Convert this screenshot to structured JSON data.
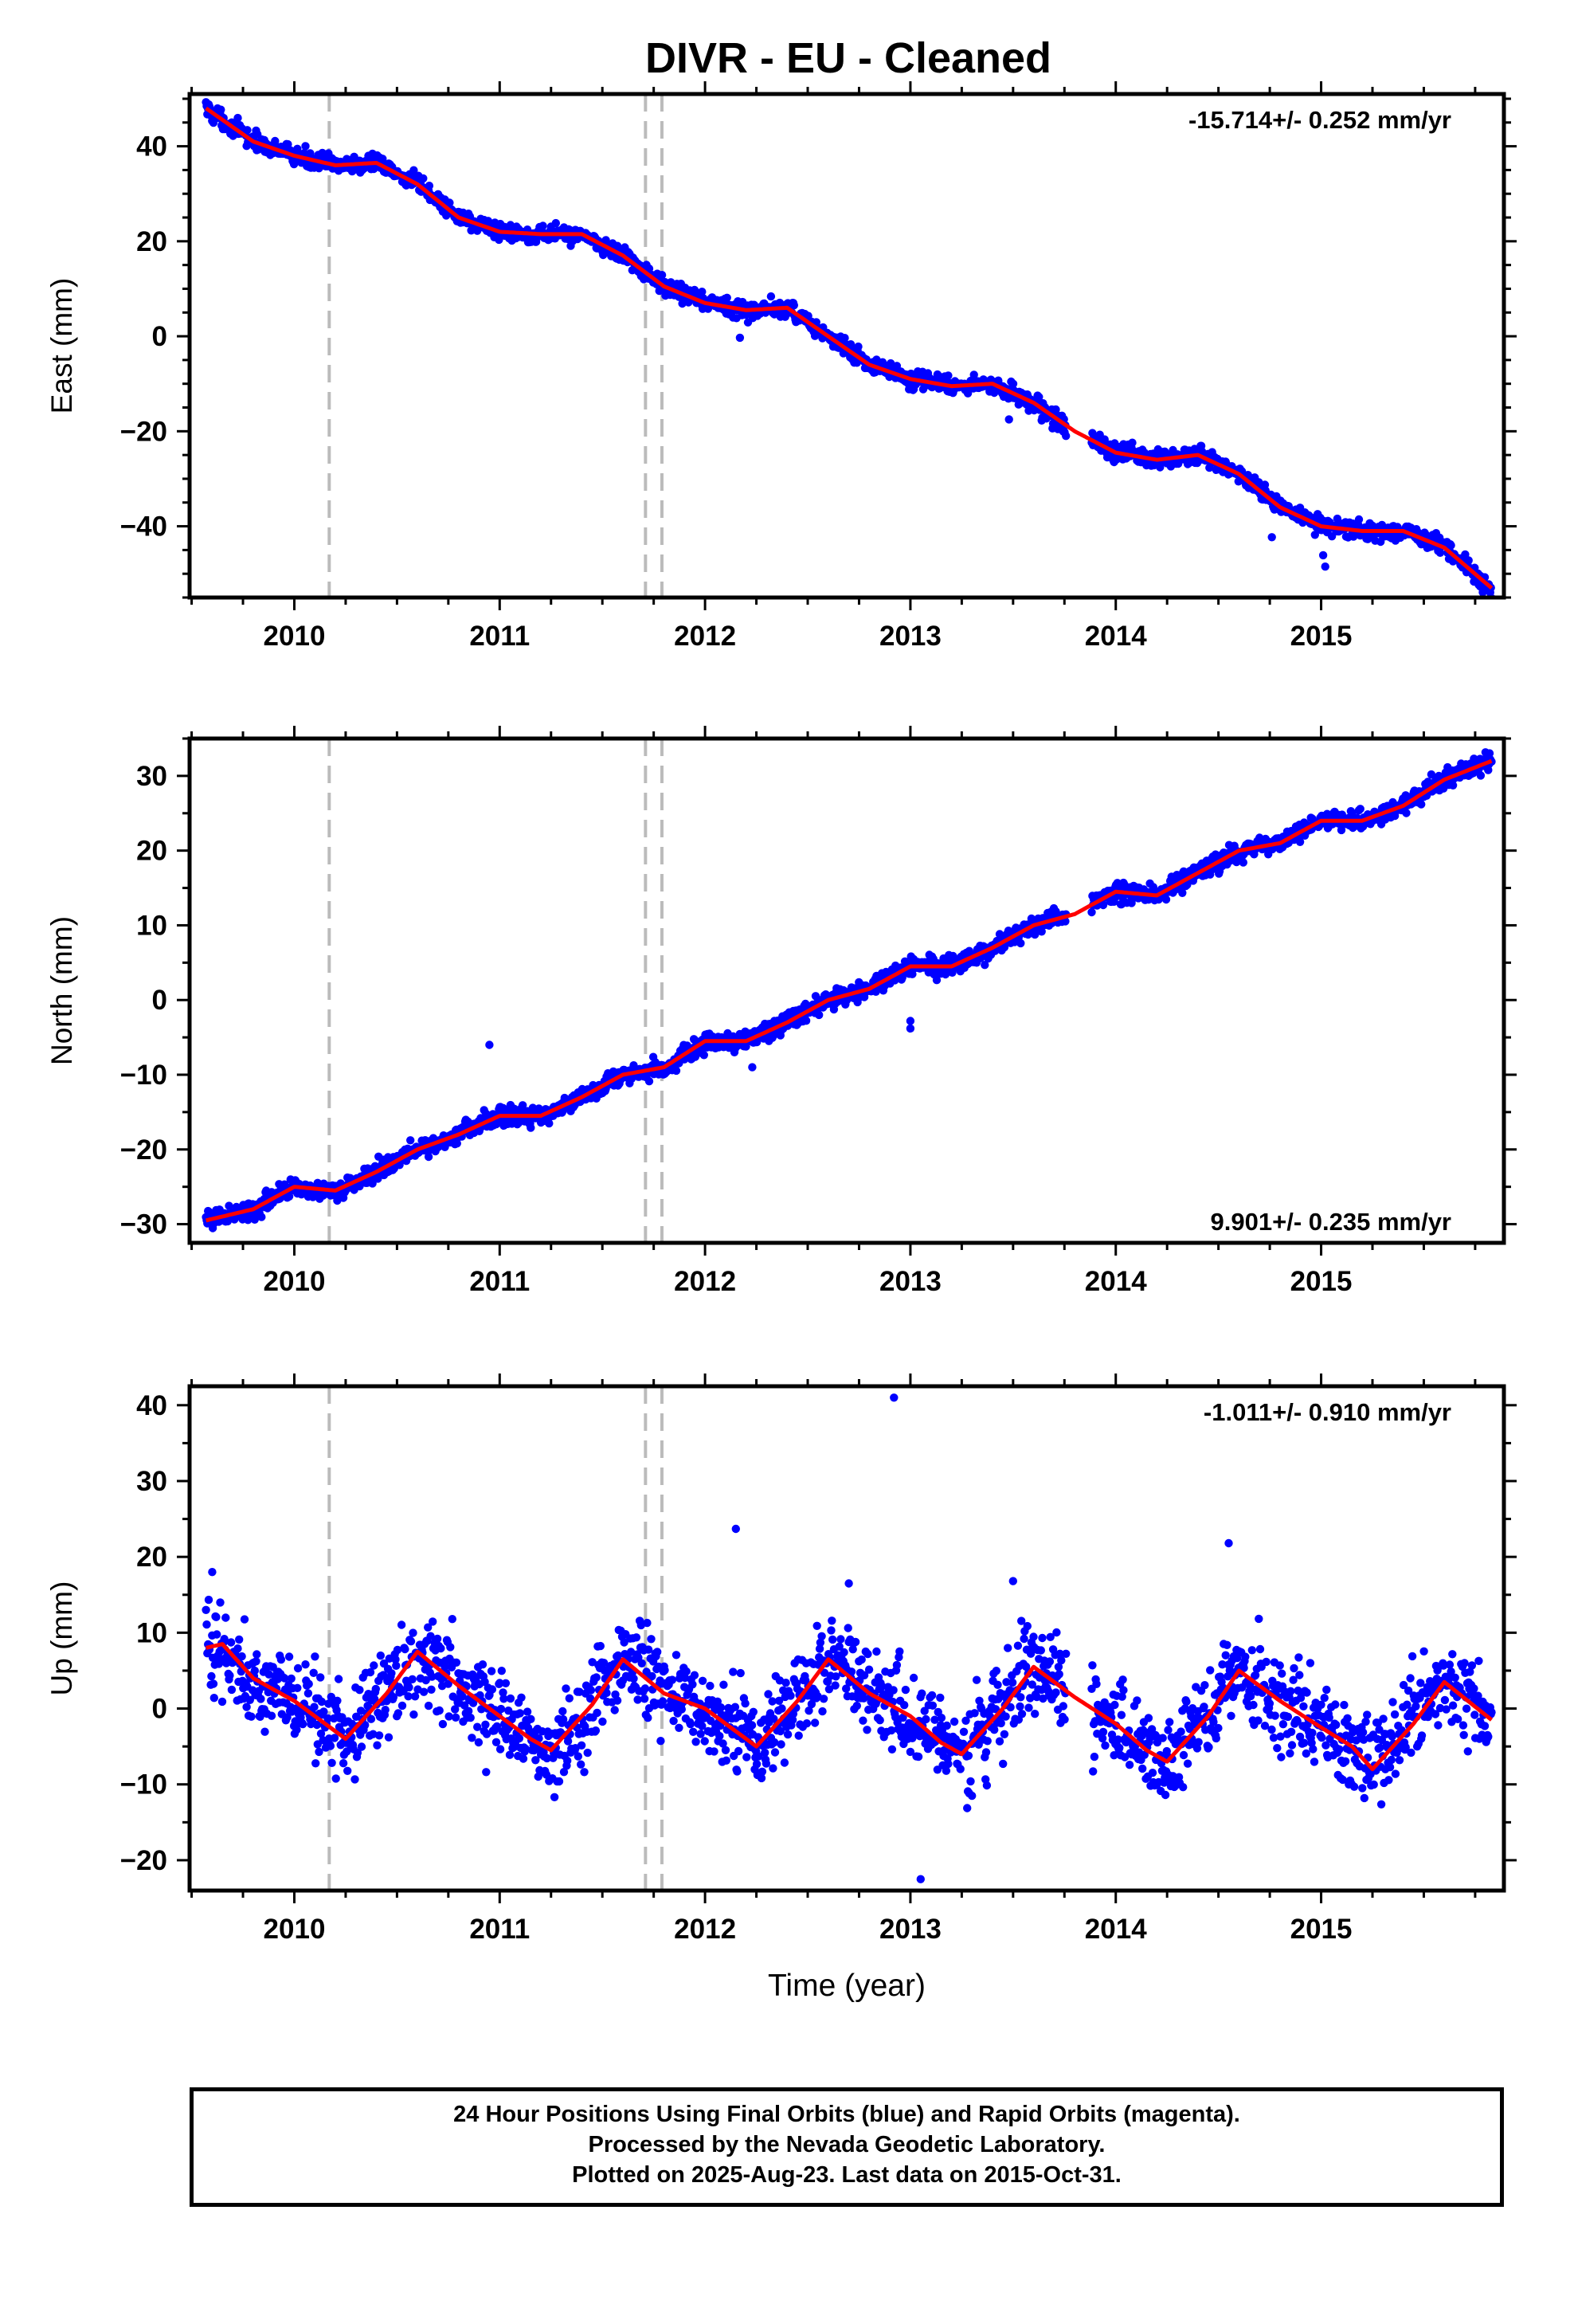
{
  "page": {
    "title": "DIVR  - EU - Cleaned",
    "footer": {
      "line1": "24 Hour Positions Using Final Orbits (blue) and Rapid Orbits (magenta).",
      "line2": "Processed by the Nevada Geodetic Laboratory.",
      "line3": "Plotted on 2025-Aug-23. Last data on 2015-Oct-31."
    }
  },
  "colors": {
    "points": "#0000ff",
    "model": "#ff0000",
    "event_lines": "#bbbbbb",
    "frame": "#000000"
  },
  "chart_data": [
    {
      "type": "scatter",
      "panel": "east",
      "ylabel": "East (mm)",
      "xlabel": "",
      "rate": "-15.714+/- 0.252 mm/yr",
      "rate_position": "top-right",
      "xlim": [
        2009.49,
        2015.89
      ],
      "ylim": [
        -55,
        51
      ],
      "yticks": [
        -40,
        -20,
        0,
        20,
        40
      ],
      "xticks": [
        2010,
        2011,
        2012,
        2013,
        2014,
        2015
      ],
      "event_lines": [
        2010.17,
        2011.71,
        2011.79
      ],
      "series": [
        {
          "kind": "data",
          "x_start": 2009.57,
          "x_end": 2015.83,
          "gap": [
            2013.76,
            2013.88
          ],
          "model": {
            "intercept_at_2012": 5.0,
            "rate": -15.714,
            "sin": 3.7,
            "cos": 2.9
          },
          "noise_mm": 1.3,
          "outliers": [
            [
              2014.76,
              -42.3
            ],
            [
              2015.02,
              -48.5
            ],
            [
              2015.01,
              -46.1
            ],
            [
              2012.17,
              -0.3
            ],
            [
              2013.48,
              -17.5
            ]
          ]
        },
        {
          "kind": "model",
          "x": [
            2009.57,
            2009.8,
            2010.0,
            2010.2,
            2010.4,
            2010.6,
            2010.8,
            2011.0,
            2011.2,
            2011.4,
            2011.6,
            2011.8,
            2012.0,
            2012.2,
            2012.4,
            2012.6,
            2012.8,
            2013.0,
            2013.2,
            2013.4,
            2013.6,
            2013.8,
            2014.0,
            2014.2,
            2014.4,
            2014.6,
            2014.8,
            2015.0,
            2015.2,
            2015.4,
            2015.6,
            2015.83
          ],
          "y": [
            48.0,
            41.0,
            38.0,
            36.0,
            36.5,
            32.0,
            25.0,
            22.0,
            21.5,
            21.5,
            17.0,
            10.5,
            7.0,
            5.5,
            6.0,
            0.0,
            -6.0,
            -9.0,
            -10.5,
            -10.0,
            -14.0,
            -20.0,
            -24.5,
            -26.0,
            -25.0,
            -29.0,
            -36.0,
            -40.0,
            -41.0,
            -41.0,
            -44.5,
            -53.0
          ]
        }
      ]
    },
    {
      "type": "scatter",
      "panel": "north",
      "ylabel": "North (mm)",
      "xlabel": "",
      "rate": "9.901+/- 0.235 mm/yr",
      "rate_position": "bottom-right",
      "xlim": [
        2009.49,
        2015.89
      ],
      "ylim": [
        -32.5,
        35
      ],
      "yticks": [
        -30,
        -20,
        -10,
        0,
        10,
        20,
        30
      ],
      "xticks": [
        2010,
        2011,
        2012,
        2013,
        2014,
        2015
      ],
      "event_lines": [
        2010.17,
        2011.71,
        2011.79
      ],
      "series": [
        {
          "kind": "data",
          "x_start": 2009.57,
          "x_end": 2015.83,
          "gap": [
            2013.76,
            2013.88
          ],
          "model": {
            "intercept_at_2012": -5.4,
            "rate": 9.901,
            "sin": -1.8,
            "cos": 1.1
          },
          "noise_mm": 0.9,
          "outliers": [
            [
              2010.95,
              -6.0
            ],
            [
              2013.0,
              -2.8
            ],
            [
              2013.0,
              -3.8
            ],
            [
              2012.23,
              -9.0
            ],
            [
              2014.87,
              21.5
            ]
          ]
        },
        {
          "kind": "model",
          "x": [
            2009.57,
            2009.8,
            2010.0,
            2010.2,
            2010.4,
            2010.6,
            2010.8,
            2011.0,
            2011.2,
            2011.4,
            2011.6,
            2011.8,
            2012.0,
            2012.2,
            2012.4,
            2012.6,
            2012.8,
            2013.0,
            2013.2,
            2013.4,
            2013.6,
            2013.8,
            2014.0,
            2014.2,
            2014.4,
            2014.6,
            2014.8,
            2015.0,
            2015.2,
            2015.4,
            2015.6,
            2015.83
          ],
          "y": [
            -29.5,
            -28.0,
            -25.0,
            -25.5,
            -23.0,
            -20.0,
            -18.0,
            -15.5,
            -15.5,
            -13.0,
            -10.0,
            -9.0,
            -5.5,
            -5.5,
            -3.0,
            0.0,
            1.5,
            4.5,
            4.5,
            7.0,
            10.0,
            11.5,
            14.5,
            14.0,
            17.0,
            20.0,
            21.0,
            24.0,
            24.0,
            26.0,
            29.5,
            32.0
          ]
        }
      ]
    },
    {
      "type": "scatter",
      "panel": "up",
      "ylabel": "Up (mm)",
      "xlabel": "Time (year)",
      "rate": "-1.011+/- 0.910 mm/yr",
      "rate_position": "top-right",
      "xlim": [
        2009.49,
        2015.89
      ],
      "ylim": [
        -24,
        42.5
      ],
      "yticks": [
        -20,
        -10,
        0,
        10,
        20,
        30,
        40
      ],
      "xticks": [
        2010,
        2011,
        2012,
        2013,
        2014,
        2015
      ],
      "event_lines": [
        2010.17,
        2011.71,
        2011.79
      ],
      "series": [
        {
          "kind": "data",
          "x_start": 2009.57,
          "x_end": 2015.83,
          "gap": [
            2013.76,
            2013.88
          ],
          "model": {
            "intercept_at_2012": 1.0,
            "rate": -1.011,
            "sin": 0.0,
            "cos": 0.0
          },
          "noise_mm": 4.2,
          "outliers": [
            [
              2012.92,
              41.0
            ],
            [
              2012.15,
              23.7
            ],
            [
              2013.05,
              -22.5
            ],
            [
              2014.55,
              21.8
            ],
            [
              2009.6,
              18.0
            ],
            [
              2012.7,
              16.5
            ],
            [
              2013.5,
              16.8
            ]
          ]
        },
        {
          "kind": "model",
          "x": [
            2009.57,
            2009.65,
            2009.8,
            2010.0,
            2010.15,
            2010.25,
            2010.45,
            2010.6,
            2010.8,
            2011.0,
            2011.15,
            2011.25,
            2011.45,
            2011.6,
            2011.8,
            2012.0,
            2012.15,
            2012.25,
            2012.45,
            2012.6,
            2012.8,
            2013.0,
            2013.15,
            2013.25,
            2013.45,
            2013.6,
            2013.8,
            2014.0,
            2014.15,
            2014.25,
            2014.45,
            2014.6,
            2014.8,
            2015.0,
            2015.15,
            2015.25,
            2015.45,
            2015.6,
            2015.83
          ],
          "y": [
            8.0,
            8.5,
            4.0,
            1.0,
            -2.0,
            -4.0,
            2.0,
            7.5,
            3.0,
            -1.0,
            -4.0,
            -5.5,
            0.5,
            6.5,
            2.0,
            0.0,
            -3.0,
            -5.0,
            1.0,
            6.5,
            2.0,
            -1.0,
            -4.5,
            -6.0,
            0.0,
            5.5,
            1.5,
            -2.0,
            -5.5,
            -7.0,
            -1.0,
            5.0,
            1.0,
            -2.5,
            -5.0,
            -8.0,
            -2.0,
            3.5,
            -1.5
          ]
        }
      ]
    }
  ]
}
